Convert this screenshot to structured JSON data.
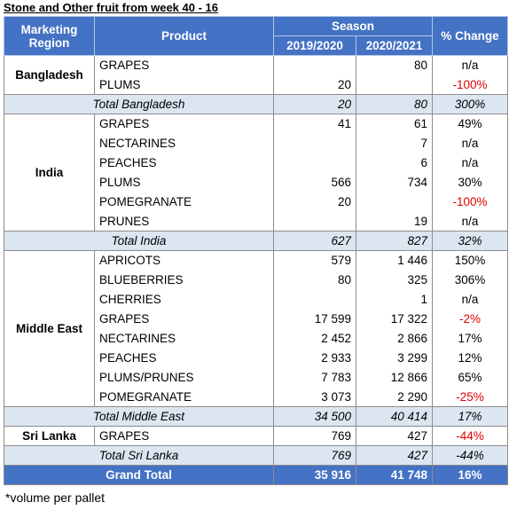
{
  "title": "Stone and Other fruit from week 40 - 16",
  "header": {
    "region": "Marketing Region",
    "product": "Product",
    "season": "Season",
    "change": "% Change",
    "seasons": [
      "2019/2020",
      "2020/2021"
    ]
  },
  "groups": [
    {
      "region": "Bangladesh",
      "rows": [
        [
          "GRAPES",
          null,
          "80",
          "n/a"
        ],
        [
          "PLUMS",
          "20",
          null,
          "-100%"
        ]
      ],
      "total": [
        "Total Bangladesh",
        "20",
        "80",
        "300%"
      ]
    },
    {
      "region": "India",
      "rows": [
        [
          "GRAPES",
          "41",
          "61",
          "49%"
        ],
        [
          "NECTARINES",
          null,
          "7",
          "n/a"
        ],
        [
          "PEACHES",
          null,
          "6",
          "n/a"
        ],
        [
          "PLUMS",
          "566",
          "734",
          "30%"
        ],
        [
          "POMEGRANATE",
          "20",
          null,
          "-100%"
        ],
        [
          "PRUNES",
          null,
          "19",
          "n/a"
        ]
      ],
      "total": [
        "Total India",
        "627",
        "827",
        "32%"
      ]
    },
    {
      "region": "Middle East",
      "rows": [
        [
          "APRICOTS",
          "579",
          "1 446",
          "150%"
        ],
        [
          "BLUEBERRIES",
          "80",
          "325",
          "306%"
        ],
        [
          "CHERRIES",
          null,
          "1",
          "n/a"
        ],
        [
          "GRAPES",
          "17 599",
          "17 322",
          "-2%"
        ],
        [
          "NECTARINES",
          "2 452",
          "2 866",
          "17%"
        ],
        [
          "PEACHES",
          "2 933",
          "3 299",
          "12%"
        ],
        [
          "PLUMS/PRUNES",
          "7 783",
          "12 866",
          "65%"
        ],
        [
          "POMEGRANATE",
          "3 073",
          "2 290",
          "-25%"
        ]
      ],
      "total": [
        "Total Middle East",
        "34 500",
        "40 414",
        "17%"
      ]
    },
    {
      "region": "Sri Lanka",
      "rows": [
        [
          "GRAPES",
          "769",
          "427",
          "-44%"
        ]
      ],
      "total": [
        "Total Sri Lanka",
        "769",
        "427",
        "-44%"
      ]
    }
  ],
  "grand_total": [
    "Grand Total",
    "35 916",
    "41 748",
    "16%"
  ],
  "footnote": "*volume per pallet"
}
